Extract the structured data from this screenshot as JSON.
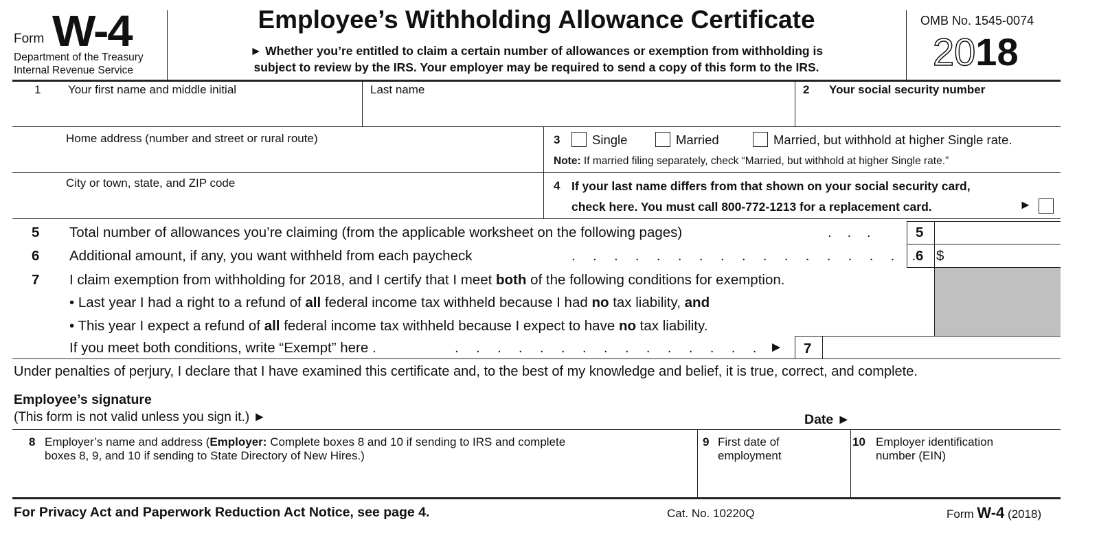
{
  "header": {
    "form_label": "Form",
    "form_name": "W-4",
    "dept_line1": "Department of the Treasury",
    "dept_line2": "Internal Revenue Service",
    "title": "Employee’s Withholding Allowance Certificate",
    "subtitle_line1": "► Whether you’re entitled to claim a certain number of allowances or exemption from withholding is",
    "subtitle_line2": "subject to review by the IRS. Your employer may be required to send a copy of this form to the IRS.",
    "omb": "OMB No. 1545-0074",
    "year_outline": "20",
    "year_bold": "18"
  },
  "fields": {
    "f1_num": "1",
    "f1_label": "Your first name and middle initial",
    "last_name_label": "Last name",
    "f2_num": "2",
    "f2_label": "Your social security number",
    "home_label": "Home address (number and street or rural route)",
    "f3_num": "3",
    "opt_single": "Single",
    "opt_married": "Married",
    "opt_married_higher": "Married, but withhold at higher Single rate.",
    "note_bold": "Note:",
    "note_text": "If married filing separately, check “Married, but withhold at higher Single rate.”",
    "city_label": "City or town, state, and ZIP code",
    "f4_num": "4",
    "f4_line1": "If your last name differs from that shown on your social security card,",
    "f4_line2": "check here. You must call 800-772-1213 for a replacement card.",
    "f4_arrow": "►"
  },
  "lines": {
    "l5_num": "5",
    "l5_text": "Total number of allowances you’re claiming (from the applicable worksheet on the following  pages)",
    "l5_dots": ".    .    .",
    "l5_box": "5",
    "l6_num": "6",
    "l6_text": "Additional amount, if any, you want withheld from each paycheck",
    "l6_dots": ".    .    .    .    .    .    .    .    .    .    .    .    .    .    .    .    .",
    "l6_box": "6",
    "l6_dollar": "$",
    "l7_num": "7",
    "l7_a": "I claim exemption from withholding for 2018, and I certify that I meet ",
    "l7_a_bold": "both",
    "l7_a_end": " of the following conditions for exemption.",
    "b1_a": "• Last year I had a right to a refund of ",
    "b1_all": "all",
    "b1_b": " federal income tax withheld because I had ",
    "b1_no": "no",
    "b1_c": " tax liability, ",
    "b1_and": "and",
    "b2_a": "• This year I expect a refund of ",
    "b2_all": "all",
    "b2_b": " federal income tax withheld because I expect to have ",
    "b2_no": "no",
    "b2_c": " tax liability.",
    "l7_exempt": "If you meet both conditions, write “Exempt” here .",
    "l7_dots": ".    .    .    .    .    .    .    .    .    .    .    .    .    .    .",
    "l7_arrow": "►",
    "l7_box": "7"
  },
  "signature": {
    "perjury": "Under penalties of perjury, I declare that I have examined this certificate and, to the best of my knowledge and belief, it is true, correct, and complete.",
    "sig_label": "Employee’s signature",
    "sig_note": "(This form is not valid unless you sign it.) ►",
    "date_label": "Date ►"
  },
  "employer": {
    "f8_num": "8",
    "f8_a": "Employer’s name and address (",
    "f8_bold": "Employer:",
    "f8_b": " Complete boxes 8 and 10 if sending to IRS and complete",
    "f8_line2": "boxes 8, 9, and 10 if sending to State Directory of New Hires.)",
    "f9_num": "9",
    "f9_line1": "First date of",
    "f9_line2": "employment",
    "f10_num": "10",
    "f10_line1": "Employer identification",
    "f10_line2": "number (EIN)"
  },
  "footer": {
    "privacy": "For Privacy Act and Paperwork Reduction Act Notice, see page 4.",
    "cat": "Cat. No. 10220Q",
    "form_label": "Form",
    "form_name": "W-4",
    "form_year": "(2018)"
  },
  "colors": {
    "shade": "#c0c0c0"
  }
}
